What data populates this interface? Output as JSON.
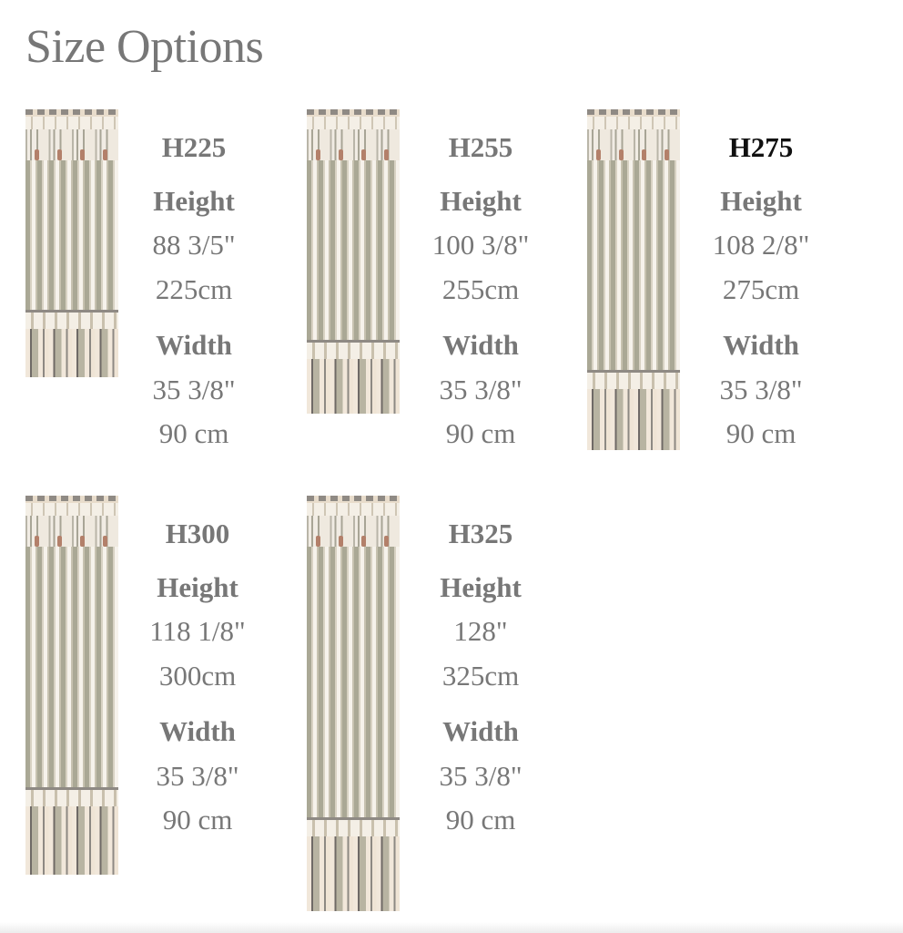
{
  "title": "Size Options",
  "height_label": "Height",
  "width_label": "Width",
  "selected": "H275",
  "options": [
    {
      "code": "H225",
      "height_in": "88 3/5\"",
      "height_cm": "225cm",
      "width_in": "35 3/8\"",
      "width_cm": "90 cm"
    },
    {
      "code": "H255",
      "height_in": "100 3/8\"",
      "height_cm": "255cm",
      "width_in": "35 3/8\"",
      "width_cm": "90 cm"
    },
    {
      "code": "H275",
      "height_in": "108 2/8\"",
      "height_cm": "275cm",
      "width_in": "35 3/8\"",
      "width_cm": "90 cm"
    },
    {
      "code": "H300",
      "height_in": "118 1/8\"",
      "height_cm": "300cm",
      "width_in": "35 3/8\"",
      "width_cm": "90 cm"
    },
    {
      "code": "H325",
      "height_in": "128\"",
      "height_cm": "325cm",
      "width_in": "35 3/8\"",
      "width_cm": "90 cm"
    }
  ],
  "colors": {
    "text": "#777777",
    "selected_text": "#111111"
  }
}
